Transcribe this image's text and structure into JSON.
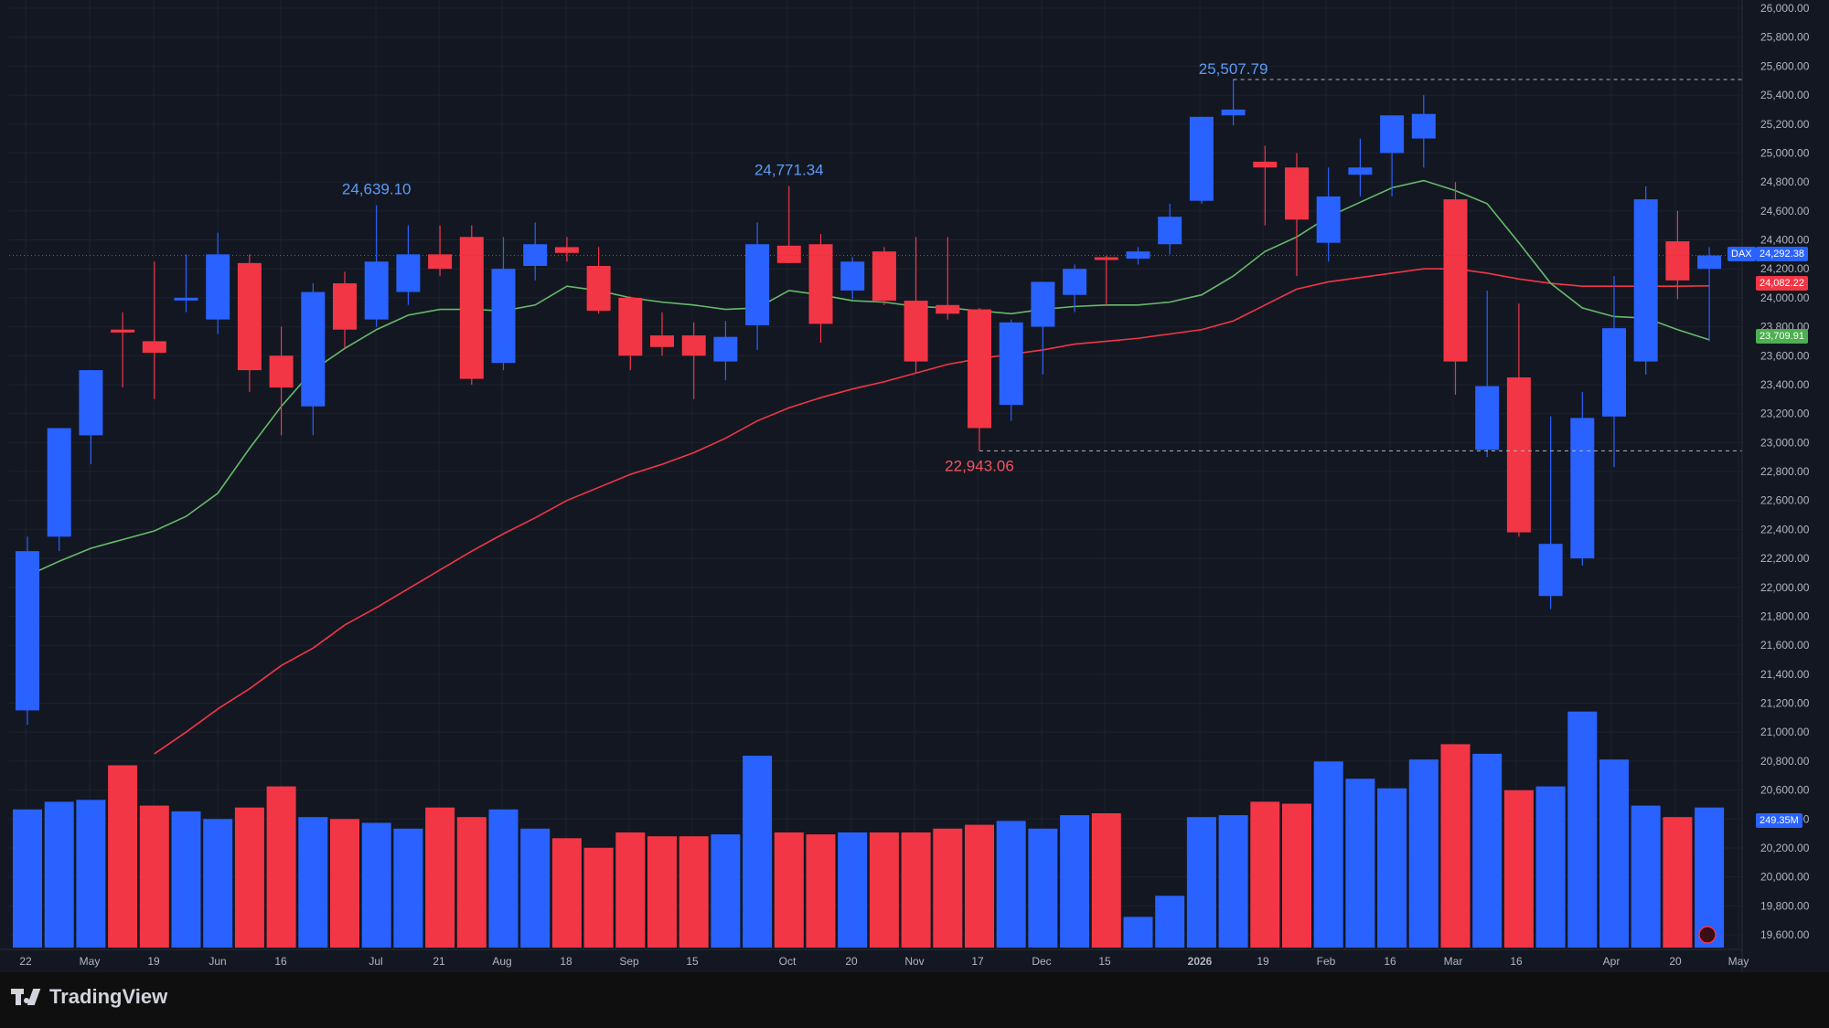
{
  "app": {
    "brand": "TradingView",
    "symbol": "DAX"
  },
  "colors": {
    "up": "#2962ff",
    "down": "#f23645",
    "ma_fast": "#66bb6a",
    "ma_slow": "#f23645",
    "bg": "#131722",
    "grid": "#1e222d",
    "axis_text": "#b2b5be"
  },
  "price_scale": [
    "26,000.00",
    "25,800.00",
    "25,600.00",
    "25,400.00",
    "25,200.00",
    "25,000.00",
    "24,800.00",
    "24,600.00",
    "24,400.00",
    "24,200.00",
    "24,000.00",
    "23,800.00",
    "23,600.00",
    "23,400.00",
    "23,200.00",
    "23,000.00",
    "22,800.00",
    "22,600.00",
    "22,400.00",
    "22,200.00",
    "22,000.00",
    "21,800.00",
    "21,600.00",
    "21,400.00",
    "21,200.00",
    "21,000.00",
    "20,800.00",
    "20,600.00",
    "20,400.00",
    "20,200.00",
    "20,000.00",
    "19,800.00",
    "19,600.00"
  ],
  "time_labels": [
    "22",
    "May",
    "19",
    "Jun",
    "16",
    "Jul",
    "21",
    "Aug",
    "18",
    "Sep",
    "15",
    "Oct",
    "20",
    "Nov",
    "17",
    "Dec",
    "15",
    "2026",
    "19",
    "Feb",
    "16",
    "Mar",
    "16",
    "Apr",
    "20",
    "May"
  ],
  "tags": {
    "last_price": "24,292.38",
    "ma_slow_value": "24,082.22",
    "ma_fast_value": "23,709.91",
    "volume": "249.35M"
  },
  "annotations": [
    "24,639.10",
    "24,771.34",
    "25,507.79",
    "22,943.06"
  ],
  "chart_data": {
    "type": "candlestick",
    "symbol": "DAX",
    "ylim": [
      19500,
      26000
    ],
    "candles": [
      {
        "o": 21150,
        "h": 22350,
        "l": 21050,
        "c": 22250
      },
      {
        "o": 22350,
        "h": 23100,
        "l": 22250,
        "c": 23100
      },
      {
        "o": 23050,
        "h": 23500,
        "l": 22850,
        "c": 23500
      },
      {
        "o": 23780,
        "h": 23900,
        "l": 23380,
        "c": 23760
      },
      {
        "o": 23700,
        "h": 24250,
        "l": 23300,
        "c": 23620
      },
      {
        "o": 24000,
        "h": 24300,
        "l": 23900,
        "c": 24000
      },
      {
        "o": 23850,
        "h": 24450,
        "l": 23750,
        "c": 24300
      },
      {
        "o": 24240,
        "h": 24300,
        "l": 23350,
        "c": 23500
      },
      {
        "o": 23600,
        "h": 23800,
        "l": 23050,
        "c": 23380
      },
      {
        "o": 23250,
        "h": 24100,
        "l": 23050,
        "c": 24040
      },
      {
        "o": 24100,
        "h": 24180,
        "l": 23650,
        "c": 23780
      },
      {
        "o": 23850,
        "h": 24639.1,
        "l": 23800,
        "c": 24250
      },
      {
        "o": 24040,
        "h": 24500,
        "l": 23950,
        "c": 24300
      },
      {
        "o": 24300,
        "h": 24500,
        "l": 24150,
        "c": 24200
      },
      {
        "o": 24420,
        "h": 24500,
        "l": 23400,
        "c": 23440
      },
      {
        "o": 23550,
        "h": 24420,
        "l": 23500,
        "c": 24200
      },
      {
        "o": 24220,
        "h": 24520,
        "l": 24120,
        "c": 24370
      },
      {
        "o": 24350,
        "h": 24420,
        "l": 24250,
        "c": 24310
      },
      {
        "o": 24220,
        "h": 24350,
        "l": 23890,
        "c": 23910
      },
      {
        "o": 24000,
        "h": 24010,
        "l": 23500,
        "c": 23600
      },
      {
        "o": 23740,
        "h": 23900,
        "l": 23600,
        "c": 23660
      },
      {
        "o": 23740,
        "h": 23830,
        "l": 23300,
        "c": 23600
      },
      {
        "o": 23560,
        "h": 23840,
        "l": 23430,
        "c": 23730
      },
      {
        "o": 23810,
        "h": 24520,
        "l": 23640,
        "c": 24370
      },
      {
        "o": 24360,
        "h": 24771.34,
        "l": 24240,
        "c": 24240
      },
      {
        "o": 24370,
        "h": 24440,
        "l": 23690,
        "c": 23820
      },
      {
        "o": 24050,
        "h": 24280,
        "l": 23990,
        "c": 24250
      },
      {
        "o": 24320,
        "h": 24350,
        "l": 23950,
        "c": 23980
      },
      {
        "o": 23980,
        "h": 24420,
        "l": 23480,
        "c": 23560
      },
      {
        "o": 23950,
        "h": 24420,
        "l": 23850,
        "c": 23890
      },
      {
        "o": 23920,
        "h": 23930,
        "l": 22943.06,
        "c": 23100
      },
      {
        "o": 23260,
        "h": 23850,
        "l": 23150,
        "c": 23830
      },
      {
        "o": 23800,
        "h": 24050,
        "l": 23470,
        "c": 24110
      },
      {
        "o": 24020,
        "h": 24230,
        "l": 23900,
        "c": 24200
      },
      {
        "o": 24280,
        "h": 24290,
        "l": 23950,
        "c": 24270
      },
      {
        "o": 24270,
        "h": 24350,
        "l": 24230,
        "c": 24320
      },
      {
        "o": 24370,
        "h": 24650,
        "l": 24300,
        "c": 24560
      },
      {
        "o": 24670,
        "h": 25250,
        "l": 24650,
        "c": 25250
      },
      {
        "o": 25260,
        "h": 25507.79,
        "l": 25190,
        "c": 25300
      },
      {
        "o": 24940,
        "h": 25050,
        "l": 24500,
        "c": 24900
      },
      {
        "o": 24900,
        "h": 25000,
        "l": 24150,
        "c": 24540
      },
      {
        "o": 24380,
        "h": 24900,
        "l": 24250,
        "c": 24700
      },
      {
        "o": 24850,
        "h": 25100,
        "l": 24700,
        "c": 24900
      },
      {
        "o": 25000,
        "h": 25260,
        "l": 24700,
        "c": 25260
      },
      {
        "o": 25100,
        "h": 25400,
        "l": 24900,
        "c": 25270
      },
      {
        "o": 24680,
        "h": 24800,
        "l": 23330,
        "c": 23560
      },
      {
        "o": 22950,
        "h": 24050,
        "l": 22900,
        "c": 23390
      },
      {
        "o": 23450,
        "h": 23960,
        "l": 22350,
        "c": 22380
      },
      {
        "o": 21940,
        "h": 23180,
        "l": 21850,
        "c": 22300
      },
      {
        "o": 22200,
        "h": 23350,
        "l": 22150,
        "c": 23170
      },
      {
        "o": 23180,
        "h": 24150,
        "l": 22830,
        "c": 23790
      },
      {
        "o": 23560,
        "h": 24770,
        "l": 23470,
        "c": 24680
      },
      {
        "o": 24390,
        "h": 24600,
        "l": 23990,
        "c": 24120
      },
      {
        "o": 24200,
        "h": 24350,
        "l": 23700,
        "c": 24292.38
      }
    ],
    "ma_fast": [
      22080,
      22180,
      22270,
      22330,
      22390,
      22490,
      22650,
      22960,
      23250,
      23500,
      23650,
      23780,
      23880,
      23920,
      23920,
      23910,
      23950,
      24080,
      24050,
      24000,
      23970,
      23950,
      23920,
      23930,
      24050,
      24020,
      23980,
      23970,
      23940,
      23930,
      23910,
      23890,
      23920,
      23940,
      23950,
      23950,
      23970,
      24020,
      24150,
      24320,
      24420,
      24560,
      24660,
      24760,
      24810,
      24740,
      24650,
      24380,
      24100,
      23930,
      23870,
      23860,
      23780,
      23709.91
    ],
    "ma_slow": [
      null,
      null,
      null,
      null,
      20850,
      21000,
      21160,
      21300,
      21460,
      21580,
      21740,
      21860,
      21990,
      22120,
      22250,
      22370,
      22480,
      22600,
      22690,
      22780,
      22850,
      22930,
      23030,
      23150,
      23240,
      23310,
      23370,
      23420,
      23480,
      23540,
      23580,
      23610,
      23640,
      23680,
      23700,
      23720,
      23750,
      23780,
      23840,
      23950,
      24060,
      24110,
      24140,
      24170,
      24200,
      24200,
      24170,
      24130,
      24100,
      24080,
      24080,
      24080,
      24080,
      24082.22
    ],
    "volumes": [
      72,
      76,
      77,
      95,
      74,
      71,
      67,
      73,
      84,
      68,
      67,
      65,
      62,
      73,
      68,
      72,
      62,
      57,
      52,
      60,
      58,
      58,
      59,
      100,
      60,
      59,
      60,
      60,
      60,
      62,
      64,
      66,
      62,
      69,
      70,
      16,
      27,
      68,
      69,
      76,
      75,
      97,
      88,
      83,
      98,
      106,
      101,
      82,
      84,
      123,
      98,
      74,
      68,
      73
    ]
  }
}
